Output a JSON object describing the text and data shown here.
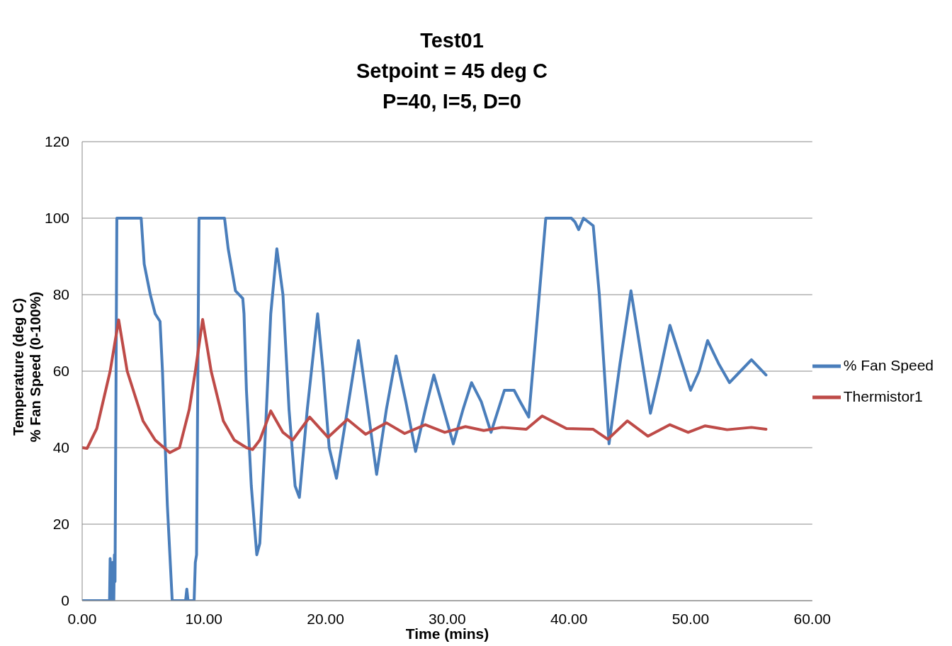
{
  "chart_data": {
    "type": "line",
    "title": "Test01\nSetpoint = 45 deg C\nP=40, I=5, D=0",
    "xlabel": "Time (mins)",
    "ylabel": "Temperature (deg C)\n% Fan Speed (0-100%)",
    "xlim": [
      0,
      60
    ],
    "xticks": [
      {
        "value": 0,
        "label": "0.00"
      },
      {
        "value": 10,
        "label": "10.00"
      },
      {
        "value": 20,
        "label": "20.00"
      },
      {
        "value": 30,
        "label": "30.00"
      },
      {
        "value": 40,
        "label": "40.00"
      },
      {
        "value": 50,
        "label": "50.00"
      },
      {
        "value": 60,
        "label": "60.00"
      }
    ],
    "ylim": [
      0,
      120
    ],
    "yticks": [
      0,
      20,
      40,
      60,
      80,
      100,
      120
    ],
    "grid": "y",
    "legend": "right",
    "marker": "none",
    "line_style": "solid",
    "series": [
      {
        "name": "% Fan Speed",
        "color": "#4a7ebb",
        "x": [
          0,
          2.25,
          2.3,
          2.4,
          2.5,
          2.6,
          2.65,
          2.7,
          2.85,
          4.85,
          5.1,
          5.6,
          6.0,
          6.4,
          6.6,
          7.0,
          7.4,
          8.5,
          8.6,
          8.7,
          9.2,
          9.3,
          9.4,
          9.6,
          11.7,
          12.0,
          12.6,
          13.2,
          13.3,
          13.5,
          13.9,
          14.35,
          14.6,
          15.0,
          15.5,
          16.0,
          16.5,
          17.0,
          17.5,
          17.85,
          18.5,
          19.35,
          19.8,
          20.3,
          20.9,
          21.8,
          22.7,
          23.4,
          24.2,
          25.0,
          25.8,
          26.6,
          27.4,
          28.2,
          28.9,
          29.7,
          30.5,
          31.3,
          32.0,
          32.8,
          33.6,
          34.2,
          34.7,
          35.5,
          36.0,
          36.7,
          37.3,
          38.1,
          40.2,
          40.5,
          40.8,
          41.2,
          42.0,
          42.5,
          43.3,
          44.2,
          45.1,
          45.9,
          46.7,
          47.5,
          48.3,
          49.2,
          50.0,
          50.7,
          51.4,
          52.3,
          53.2,
          54.1,
          55.0,
          55.6,
          56.2
        ],
        "values": [
          0,
          0,
          11,
          0,
          10,
          0,
          12,
          5,
          100,
          100,
          88,
          80,
          75,
          73,
          60,
          25,
          0,
          0,
          3,
          0,
          0,
          10,
          12,
          100,
          100,
          92,
          81,
          79,
          75,
          55,
          30,
          12,
          15,
          40,
          75,
          92,
          80,
          50,
          30,
          27,
          50,
          75,
          60,
          40,
          32,
          50,
          68,
          52,
          33,
          50,
          64,
          52,
          39,
          50,
          59,
          50,
          41,
          50,
          57,
          52,
          44,
          50,
          55,
          55,
          52,
          48,
          70,
          100,
          100,
          99,
          97,
          100,
          98,
          80,
          41,
          62,
          81,
          65,
          49,
          60,
          72,
          63,
          55,
          60,
          68,
          62,
          57,
          60,
          63,
          61,
          59
        ]
      },
      {
        "name": "Thermistor1",
        "color": "#be4b48",
        "x": [
          0,
          0.4,
          1.2,
          2.3,
          3.0,
          3.7,
          5.0,
          6.0,
          7.2,
          8.0,
          8.8,
          9.3,
          9.9,
          10.6,
          11.6,
          12.5,
          13.5,
          14.0,
          14.6,
          15.5,
          16.5,
          17.3,
          18.7,
          20.2,
          21.8,
          23.3,
          25.0,
          26.5,
          28.2,
          29.8,
          31.5,
          33.0,
          34.5,
          36.5,
          37.8,
          39.8,
          42.0,
          43.2,
          44.8,
          46.5,
          48.3,
          49.8,
          51.2,
          53.0,
          55.0,
          56.2
        ],
        "values": [
          40,
          39.8,
          45,
          60,
          73.4,
          60,
          47,
          42,
          38.7,
          40,
          50,
          60,
          73.5,
          60,
          47,
          42,
          40,
          39.5,
          42,
          49.6,
          44,
          42,
          48,
          42.7,
          47.4,
          43.5,
          46.5,
          43.7,
          46,
          44,
          45.5,
          44.5,
          45.3,
          44.8,
          48.3,
          45,
          44.8,
          42.2,
          47,
          43,
          46,
          44,
          45.7,
          44.7,
          45.3,
          44.8
        ]
      }
    ]
  }
}
